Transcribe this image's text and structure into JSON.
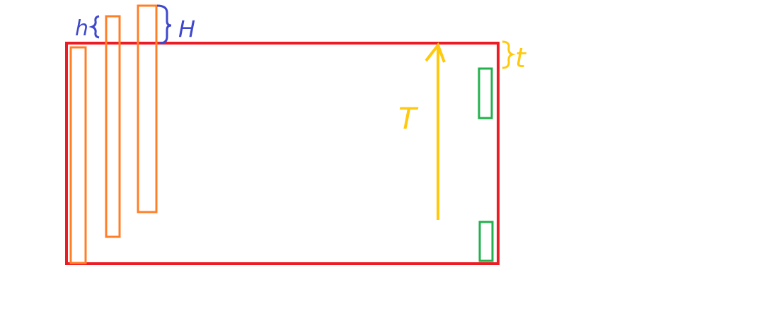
{
  "labels": {
    "h": "h",
    "H": "H",
    "T": "T",
    "t": "t"
  },
  "colors": {
    "frame": "#ed1c24",
    "bar": "#ff7f27",
    "slot": "#22b14c",
    "arrow": "#ffc90e",
    "annotation_blue": "#3f48cc"
  }
}
